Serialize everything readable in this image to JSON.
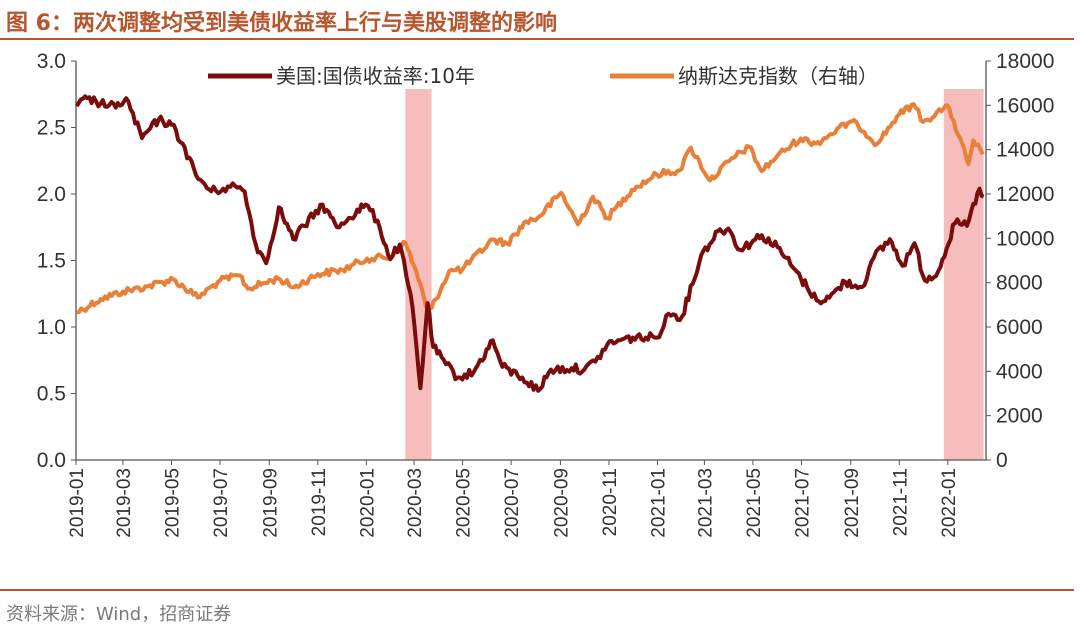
{
  "title": "图 6：两次调整均受到美债收益率上行与美股调整的影响",
  "source": "资料来源：Wind，招商证券",
  "colors": {
    "title": "#B6562E",
    "series1": "#7A0C0C",
    "series2": "#E9803A",
    "shade": "#F4A6A6"
  },
  "chart_data": {
    "type": "line",
    "x_ticks": [
      "2019-01",
      "2019-03",
      "2019-05",
      "2019-07",
      "2019-09",
      "2019-11",
      "2020-01",
      "2020-03",
      "2020-05",
      "2020-07",
      "2020-09",
      "2020-11",
      "2021-01",
      "2021-03",
      "2021-05",
      "2021-07",
      "2021-09",
      "2021-11",
      "2022-01"
    ],
    "y_left": {
      "min": 0,
      "max": 3.0,
      "ticks": [
        "0.0",
        "0.5",
        "1.0",
        "1.5",
        "2.0",
        "2.5",
        "3.0"
      ]
    },
    "y_right": {
      "min": 0,
      "max": 18000,
      "ticks": [
        "0",
        "2000",
        "4000",
        "6000",
        "8000",
        "10000",
        "12000",
        "14000",
        "16000",
        "18000"
      ]
    },
    "shaded_periods": [
      {
        "start": "2020-02-19",
        "end": "2020-03-23"
      },
      {
        "start": "2021-12-27",
        "end": "2022-02-15"
      }
    ],
    "series": [
      {
        "name": "美国:国债收益率:10年",
        "axis": "left",
        "color": "#7A0C0C",
        "points": [
          [
            "2019-01-02",
            2.66
          ],
          [
            "2019-01-15",
            2.72
          ],
          [
            "2019-02-01",
            2.68
          ],
          [
            "2019-02-20",
            2.65
          ],
          [
            "2019-03-05",
            2.72
          ],
          [
            "2019-03-25",
            2.42
          ],
          [
            "2019-04-15",
            2.56
          ],
          [
            "2019-05-01",
            2.52
          ],
          [
            "2019-05-15",
            2.38
          ],
          [
            "2019-06-01",
            2.14
          ],
          [
            "2019-06-20",
            2.02
          ],
          [
            "2019-07-05",
            2.04
          ],
          [
            "2019-07-20",
            2.06
          ],
          [
            "2019-08-01",
            2.02
          ],
          [
            "2019-08-15",
            1.62
          ],
          [
            "2019-08-28",
            1.48
          ],
          [
            "2019-09-13",
            1.9
          ],
          [
            "2019-10-01",
            1.66
          ],
          [
            "2019-10-15",
            1.76
          ],
          [
            "2019-11-07",
            1.92
          ],
          [
            "2019-11-25",
            1.75
          ],
          [
            "2019-12-10",
            1.82
          ],
          [
            "2019-12-31",
            1.92
          ],
          [
            "2020-01-15",
            1.8
          ],
          [
            "2020-01-31",
            1.51
          ],
          [
            "2020-02-12",
            1.62
          ],
          [
            "2020-02-28",
            1.15
          ],
          [
            "2020-03-09",
            0.54
          ],
          [
            "2020-03-18",
            1.18
          ],
          [
            "2020-03-25",
            0.85
          ],
          [
            "2020-04-10",
            0.72
          ],
          [
            "2020-04-25",
            0.62
          ],
          [
            "2020-05-15",
            0.66
          ],
          [
            "2020-06-08",
            0.9
          ],
          [
            "2020-06-20",
            0.7
          ],
          [
            "2020-07-15",
            0.62
          ],
          [
            "2020-08-04",
            0.52
          ],
          [
            "2020-08-20",
            0.68
          ],
          [
            "2020-09-15",
            0.69
          ],
          [
            "2020-10-01",
            0.68
          ],
          [
            "2020-10-15",
            0.74
          ],
          [
            "2020-10-30",
            0.87
          ],
          [
            "2020-11-15",
            0.9
          ],
          [
            "2020-12-01",
            0.92
          ],
          [
            "2020-12-31",
            0.92
          ],
          [
            "2021-01-15",
            1.1
          ],
          [
            "2021-02-01",
            1.08
          ],
          [
            "2021-02-25",
            1.54
          ],
          [
            "2021-03-18",
            1.72
          ],
          [
            "2021-03-31",
            1.74
          ],
          [
            "2021-04-15",
            1.58
          ],
          [
            "2021-05-12",
            1.69
          ],
          [
            "2021-06-01",
            1.6
          ],
          [
            "2021-06-20",
            1.45
          ],
          [
            "2021-07-08",
            1.3
          ],
          [
            "2021-07-20",
            1.2
          ],
          [
            "2021-08-05",
            1.22
          ],
          [
            "2021-08-25",
            1.34
          ],
          [
            "2021-09-15",
            1.3
          ],
          [
            "2021-09-30",
            1.52
          ],
          [
            "2021-10-20",
            1.66
          ],
          [
            "2021-11-05",
            1.46
          ],
          [
            "2021-11-20",
            1.63
          ],
          [
            "2021-12-03",
            1.35
          ],
          [
            "2021-12-20",
            1.42
          ],
          [
            "2022-01-10",
            1.78
          ],
          [
            "2022-01-25",
            1.76
          ],
          [
            "2022-02-10",
            2.04
          ],
          [
            "2022-02-15",
            1.98
          ]
        ]
      },
      {
        "name": "纳斯达克指数（右轴）",
        "axis": "right",
        "color": "#E9803A",
        "points": [
          [
            "2019-01-02",
            6665
          ],
          [
            "2019-02-01",
            7260
          ],
          [
            "2019-03-01",
            7595
          ],
          [
            "2019-04-01",
            7830
          ],
          [
            "2019-05-03",
            8160
          ],
          [
            "2019-06-03",
            7333
          ],
          [
            "2019-07-01",
            8090
          ],
          [
            "2019-07-26",
            8330
          ],
          [
            "2019-08-05",
            7725
          ],
          [
            "2019-09-12",
            8195
          ],
          [
            "2019-10-02",
            7785
          ],
          [
            "2019-11-01",
            8385
          ],
          [
            "2019-12-02",
            8570
          ],
          [
            "2020-01-02",
            9090
          ],
          [
            "2020-01-31",
            9150
          ],
          [
            "2020-02-19",
            9817
          ],
          [
            "2020-03-09",
            7950
          ],
          [
            "2020-03-16",
            6904
          ],
          [
            "2020-03-23",
            6860
          ],
          [
            "2020-04-14",
            8515
          ],
          [
            "2020-05-01",
            8605
          ],
          [
            "2020-06-08",
            9953
          ],
          [
            "2020-06-26",
            9757
          ],
          [
            "2020-07-20",
            10767
          ],
          [
            "2020-08-03",
            10902
          ],
          [
            "2020-09-02",
            12056
          ],
          [
            "2020-09-23",
            10632
          ],
          [
            "2020-10-12",
            11876
          ],
          [
            "2020-10-30",
            10911
          ],
          [
            "2020-11-30",
            12198
          ],
          [
            "2020-12-31",
            12888
          ],
          [
            "2021-01-29",
            13070
          ],
          [
            "2021-02-12",
            14095
          ],
          [
            "2021-03-08",
            12609
          ],
          [
            "2021-04-01",
            13480
          ],
          [
            "2021-04-26",
            14138
          ],
          [
            "2021-05-12",
            13031
          ],
          [
            "2021-06-01",
            13736
          ],
          [
            "2021-06-30",
            14504
          ],
          [
            "2021-07-19",
            14274
          ],
          [
            "2021-08-31",
            15259
          ],
          [
            "2021-09-10",
            15115
          ],
          [
            "2021-10-04",
            14255
          ],
          [
            "2021-10-29",
            15498
          ],
          [
            "2021-11-19",
            16057
          ],
          [
            "2021-12-01",
            15254
          ],
          [
            "2021-12-27",
            15871
          ],
          [
            "2022-01-03",
            15833
          ],
          [
            "2022-01-27",
            13352
          ],
          [
            "2022-02-02",
            14417
          ],
          [
            "2022-02-14",
            13790
          ]
        ]
      }
    ]
  }
}
